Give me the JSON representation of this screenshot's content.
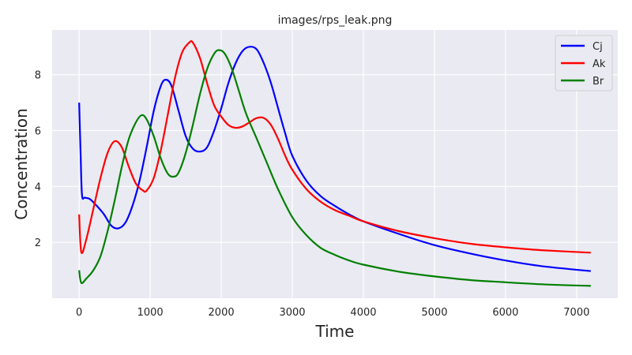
{
  "chart_data": {
    "type": "line",
    "title": "images/rps_leak.png",
    "xlabel": "Time",
    "ylabel": "Concentration",
    "xlim": [
      -380,
      7580
    ],
    "ylim": [
      0.0,
      9.6
    ],
    "xticks": [
      0,
      1000,
      2000,
      3000,
      4000,
      5000,
      6000,
      7000
    ],
    "yticks": [
      2,
      4,
      6,
      8
    ],
    "grid": true,
    "legend_position": "top-right",
    "series": [
      {
        "name": "Cj",
        "color": "#0000ff",
        "points": [
          [
            0,
            7.0
          ],
          [
            20,
            5.2
          ],
          [
            40,
            3.7
          ],
          [
            80,
            3.6
          ],
          [
            150,
            3.55
          ],
          [
            250,
            3.3
          ],
          [
            350,
            3.0
          ],
          [
            450,
            2.6
          ],
          [
            550,
            2.5
          ],
          [
            650,
            2.7
          ],
          [
            750,
            3.3
          ],
          [
            850,
            4.2
          ],
          [
            950,
            5.4
          ],
          [
            1050,
            6.7
          ],
          [
            1150,
            7.6
          ],
          [
            1220,
            7.82
          ],
          [
            1300,
            7.6
          ],
          [
            1400,
            6.7
          ],
          [
            1500,
            5.8
          ],
          [
            1600,
            5.35
          ],
          [
            1700,
            5.25
          ],
          [
            1800,
            5.4
          ],
          [
            1900,
            6.0
          ],
          [
            2000,
            6.8
          ],
          [
            2100,
            7.7
          ],
          [
            2200,
            8.4
          ],
          [
            2300,
            8.85
          ],
          [
            2400,
            9.0
          ],
          [
            2500,
            8.9
          ],
          [
            2600,
            8.4
          ],
          [
            2700,
            7.7
          ],
          [
            2800,
            6.8
          ],
          [
            2900,
            5.9
          ],
          [
            3000,
            5.1
          ],
          [
            3200,
            4.2
          ],
          [
            3400,
            3.65
          ],
          [
            3600,
            3.3
          ],
          [
            3800,
            3.0
          ],
          [
            4000,
            2.75
          ],
          [
            4500,
            2.3
          ],
          [
            5000,
            1.9
          ],
          [
            5500,
            1.6
          ],
          [
            6000,
            1.35
          ],
          [
            6500,
            1.15
          ],
          [
            7200,
            0.97
          ]
        ]
      },
      {
        "name": "Ak",
        "color": "#ff0000",
        "points": [
          [
            0,
            3.0
          ],
          [
            30,
            1.65
          ],
          [
            100,
            2.1
          ],
          [
            200,
            3.2
          ],
          [
            300,
            4.3
          ],
          [
            400,
            5.2
          ],
          [
            500,
            5.62
          ],
          [
            600,
            5.4
          ],
          [
            700,
            4.7
          ],
          [
            800,
            4.1
          ],
          [
            900,
            3.85
          ],
          [
            950,
            3.85
          ],
          [
            1050,
            4.3
          ],
          [
            1150,
            5.3
          ],
          [
            1250,
            6.6
          ],
          [
            1350,
            7.9
          ],
          [
            1450,
            8.8
          ],
          [
            1550,
            9.15
          ],
          [
            1600,
            9.15
          ],
          [
            1700,
            8.6
          ],
          [
            1800,
            7.7
          ],
          [
            1900,
            6.9
          ],
          [
            2000,
            6.5
          ],
          [
            2100,
            6.2
          ],
          [
            2200,
            6.1
          ],
          [
            2300,
            6.15
          ],
          [
            2400,
            6.3
          ],
          [
            2500,
            6.45
          ],
          [
            2600,
            6.45
          ],
          [
            2700,
            6.2
          ],
          [
            2800,
            5.7
          ],
          [
            2900,
            5.1
          ],
          [
            3000,
            4.6
          ],
          [
            3200,
            3.9
          ],
          [
            3400,
            3.45
          ],
          [
            3600,
            3.15
          ],
          [
            3800,
            2.95
          ],
          [
            4000,
            2.75
          ],
          [
            4500,
            2.4
          ],
          [
            5000,
            2.15
          ],
          [
            5500,
            1.95
          ],
          [
            6000,
            1.82
          ],
          [
            6500,
            1.72
          ],
          [
            7200,
            1.63
          ]
        ]
      },
      {
        "name": "Br",
        "color": "#008000",
        "points": [
          [
            0,
            1.0
          ],
          [
            30,
            0.55
          ],
          [
            100,
            0.7
          ],
          [
            200,
            1.0
          ],
          [
            300,
            1.5
          ],
          [
            400,
            2.4
          ],
          [
            500,
            3.5
          ],
          [
            600,
            4.7
          ],
          [
            700,
            5.7
          ],
          [
            800,
            6.3
          ],
          [
            880,
            6.55
          ],
          [
            950,
            6.4
          ],
          [
            1050,
            5.8
          ],
          [
            1150,
            5.0
          ],
          [
            1250,
            4.45
          ],
          [
            1330,
            4.35
          ],
          [
            1400,
            4.5
          ],
          [
            1500,
            5.2
          ],
          [
            1600,
            6.2
          ],
          [
            1700,
            7.3
          ],
          [
            1800,
            8.2
          ],
          [
            1900,
            8.75
          ],
          [
            1970,
            8.88
          ],
          [
            2050,
            8.75
          ],
          [
            2150,
            8.2
          ],
          [
            2250,
            7.4
          ],
          [
            2350,
            6.6
          ],
          [
            2500,
            5.7
          ],
          [
            2650,
            4.8
          ],
          [
            2800,
            3.9
          ],
          [
            3000,
            2.9
          ],
          [
            3200,
            2.25
          ],
          [
            3400,
            1.8
          ],
          [
            3600,
            1.55
          ],
          [
            3800,
            1.35
          ],
          [
            4000,
            1.2
          ],
          [
            4500,
            0.95
          ],
          [
            5000,
            0.78
          ],
          [
            5500,
            0.65
          ],
          [
            6000,
            0.57
          ],
          [
            6500,
            0.5
          ],
          [
            7200,
            0.44
          ]
        ]
      }
    ]
  }
}
